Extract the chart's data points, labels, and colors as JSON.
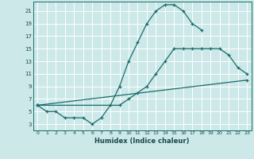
{
  "xlabel": "Humidex (Indice chaleur)",
  "bg_color": "#cce8e8",
  "grid_color": "#ffffff",
  "line_color": "#1a6b6b",
  "xlim": [
    -0.5,
    23.5
  ],
  "ylim": [
    2.0,
    22.5
  ],
  "xticks": [
    0,
    1,
    2,
    3,
    4,
    5,
    6,
    7,
    8,
    9,
    10,
    11,
    12,
    13,
    14,
    15,
    16,
    17,
    18,
    19,
    20,
    21,
    22,
    23
  ],
  "yticks": [
    3,
    5,
    7,
    9,
    11,
    13,
    15,
    17,
    19,
    21
  ],
  "line1_x": [
    0,
    1,
    2,
    3,
    4,
    5,
    6,
    7,
    8,
    9,
    10,
    11,
    12,
    13,
    14,
    15,
    16,
    17,
    18
  ],
  "line1_y": [
    6,
    5,
    5,
    4,
    4,
    4,
    3,
    4,
    6,
    9,
    13,
    16,
    19,
    21,
    22,
    22,
    21,
    19,
    18
  ],
  "line2_x": [
    0,
    9,
    10,
    11,
    12,
    13,
    14,
    15,
    16,
    17,
    18,
    19,
    20,
    21,
    22,
    23
  ],
  "line2_y": [
    6,
    6,
    7,
    8,
    9,
    11,
    13,
    15,
    15,
    15,
    15,
    15,
    15,
    14,
    12,
    11
  ],
  "line3_x": [
    0,
    23
  ],
  "line3_y": [
    6,
    10
  ]
}
